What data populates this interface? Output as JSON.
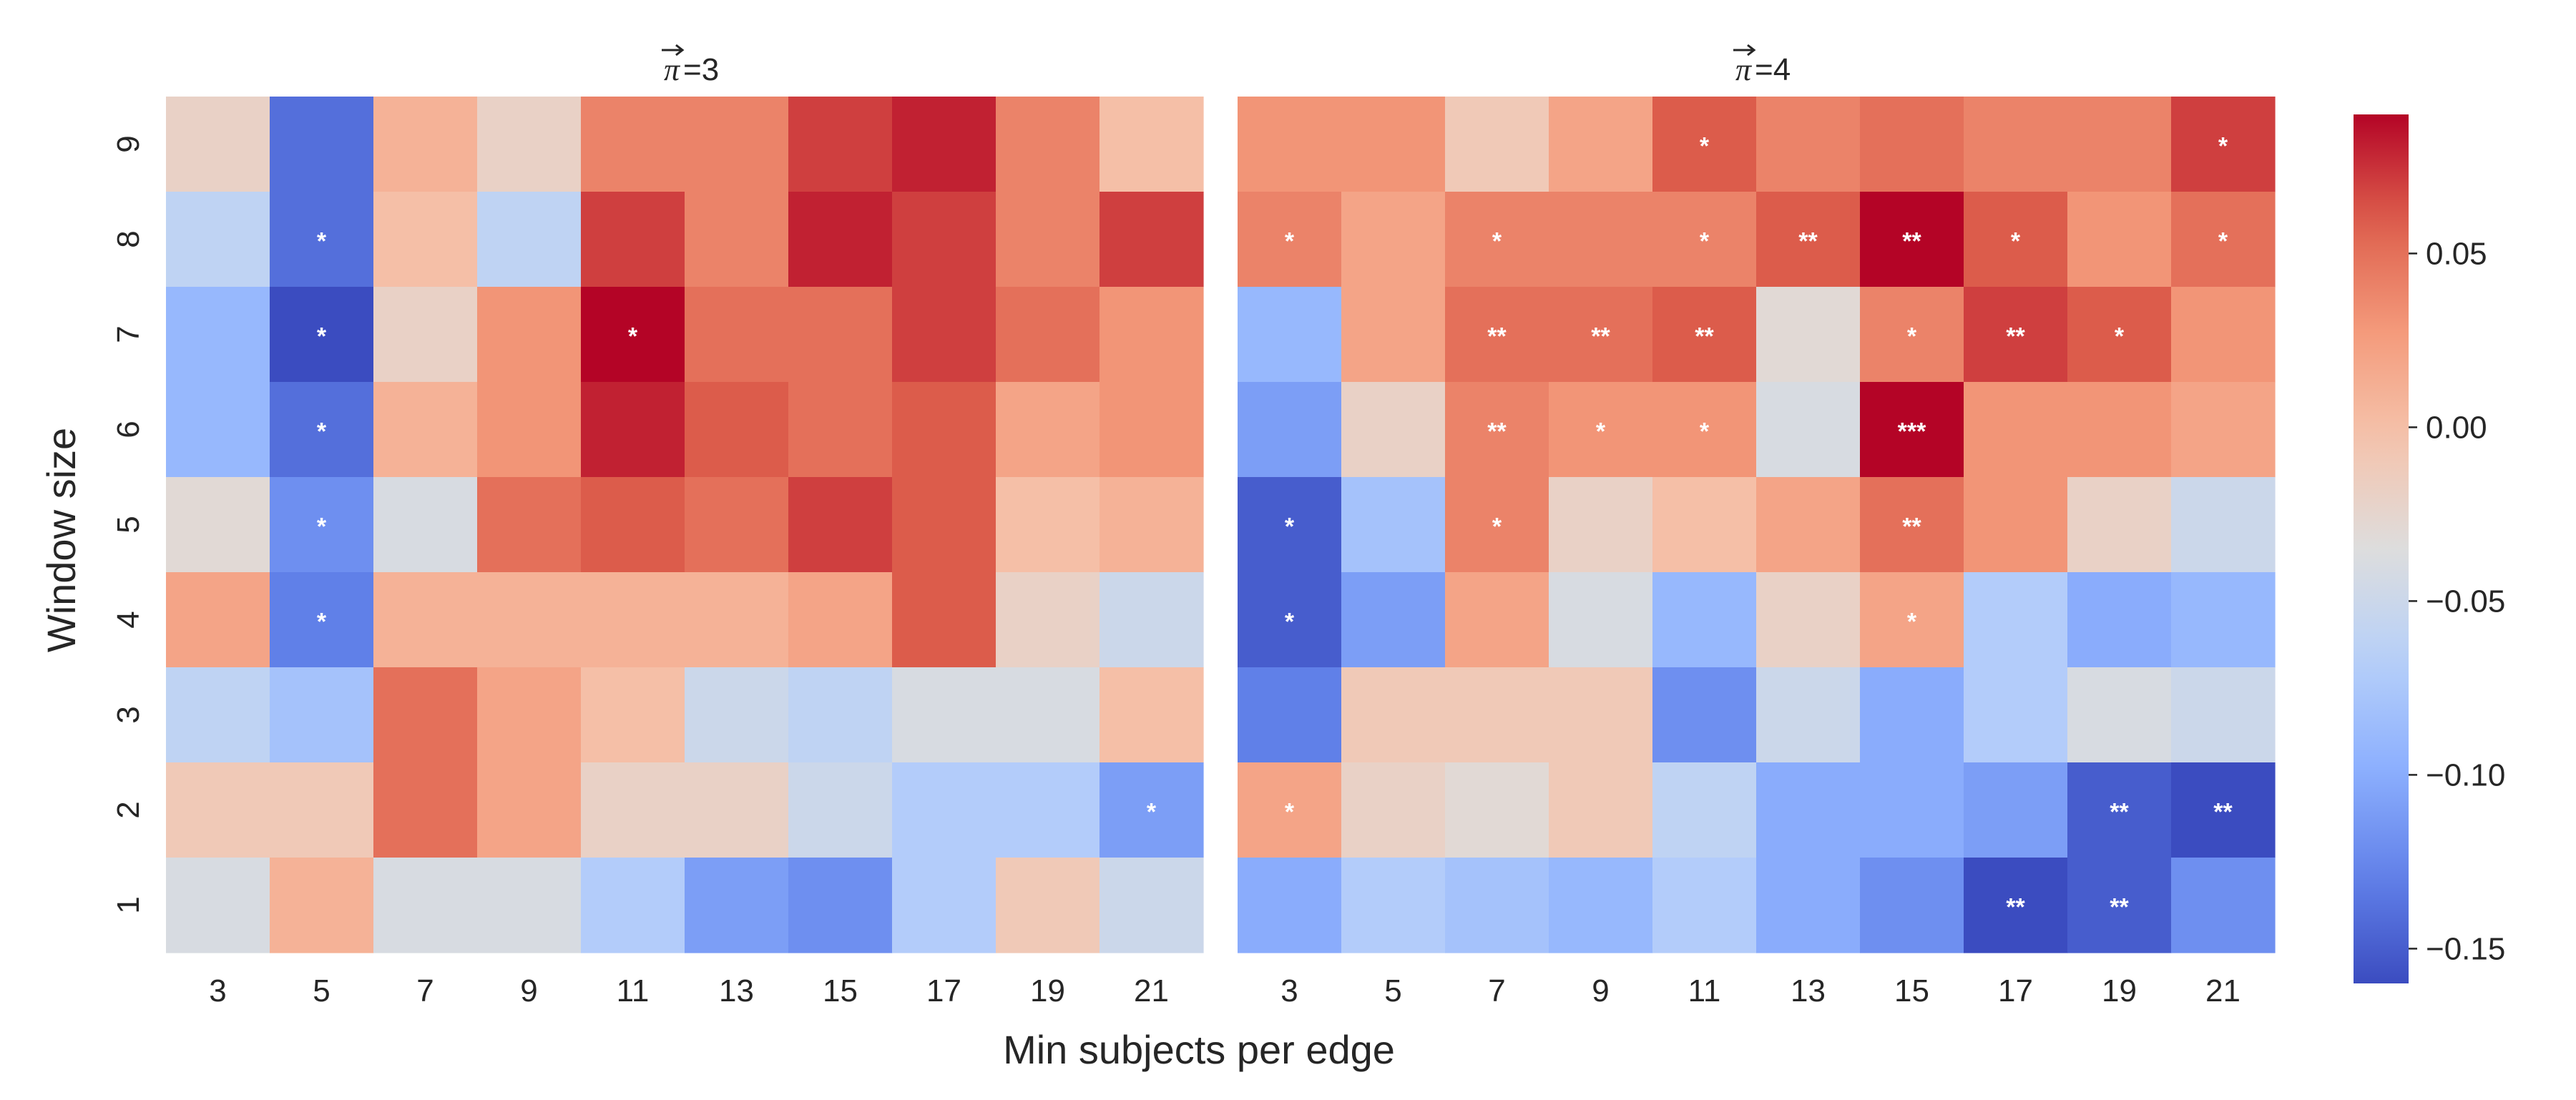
{
  "chart_data": {
    "type": "heatmap",
    "xlabel": "Min subjects per edge",
    "ylabel": "Window size",
    "x_categories": [
      "3",
      "5",
      "7",
      "9",
      "11",
      "13",
      "15",
      "17",
      "19",
      "21"
    ],
    "y_categories": [
      "9",
      "8",
      "7",
      "6",
      "5",
      "4",
      "3",
      "2",
      "1"
    ],
    "colorbar": {
      "colormap": "coolwarm",
      "vmin": -0.16,
      "vmax": 0.09,
      "ticks": [
        0.05,
        0.0,
        -0.05,
        -0.1,
        -0.15
      ],
      "tick_labels": [
        "0.05",
        "0.00",
        "−0.05",
        "−0.10",
        "−0.15"
      ]
    },
    "panels": [
      {
        "title_symbol": "π",
        "title_value": "=3",
        "values": [
          [
            -0.02,
            -0.14,
            0.01,
            -0.02,
            0.04,
            0.04,
            0.07,
            0.08,
            0.04,
            0.0
          ],
          [
            -0.06,
            -0.14,
            0.0,
            -0.06,
            0.07,
            0.04,
            0.08,
            0.07,
            0.04,
            0.07
          ],
          [
            -0.09,
            -0.16,
            -0.02,
            0.03,
            0.09,
            0.05,
            0.05,
            0.07,
            0.05,
            0.03
          ],
          [
            -0.09,
            -0.14,
            0.01,
            0.03,
            0.08,
            0.06,
            0.05,
            0.06,
            0.02,
            0.03
          ],
          [
            -0.03,
            -0.12,
            -0.04,
            0.05,
            0.06,
            0.05,
            0.07,
            0.06,
            0.0,
            0.01
          ],
          [
            0.02,
            -0.13,
            0.01,
            0.01,
            0.01,
            0.01,
            0.02,
            0.06,
            -0.02,
            -0.05
          ],
          [
            -0.06,
            -0.08,
            0.05,
            0.02,
            0.0,
            -0.05,
            -0.06,
            -0.04,
            -0.04,
            0.0
          ],
          [
            -0.01,
            -0.01,
            0.05,
            0.02,
            -0.02,
            -0.02,
            -0.05,
            -0.07,
            -0.07,
            -0.11
          ],
          [
            -0.04,
            0.01,
            -0.04,
            -0.04,
            -0.07,
            -0.11,
            -0.12,
            -0.07,
            -0.01,
            -0.05
          ]
        ],
        "annotations": [
          [
            "",
            "",
            "",
            "",
            "",
            "",
            "",
            "",
            "",
            ""
          ],
          [
            "",
            "*",
            "",
            "",
            "",
            "",
            "",
            "",
            "",
            ""
          ],
          [
            "",
            "*",
            "",
            "",
            "*",
            "",
            "",
            "",
            "",
            ""
          ],
          [
            "",
            "*",
            "",
            "",
            "",
            "",
            "",
            "",
            "",
            ""
          ],
          [
            "",
            "*",
            "",
            "",
            "",
            "",
            "",
            "",
            "",
            ""
          ],
          [
            "",
            "*",
            "",
            "",
            "",
            "",
            "",
            "",
            "",
            ""
          ],
          [
            "",
            "",
            "",
            "",
            "",
            "",
            "",
            "",
            "",
            ""
          ],
          [
            "",
            "",
            "",
            "",
            "",
            "",
            "",
            "",
            "",
            "*"
          ],
          [
            "",
            "",
            "",
            "",
            "",
            "",
            "",
            "",
            "",
            ""
          ]
        ]
      },
      {
        "title_symbol": "π",
        "title_value": "=4",
        "values": [
          [
            0.03,
            0.03,
            -0.01,
            0.02,
            0.06,
            0.04,
            0.05,
            0.04,
            0.04,
            0.07
          ],
          [
            0.04,
            0.02,
            0.04,
            0.04,
            0.04,
            0.06,
            0.09,
            0.06,
            0.03,
            0.05
          ],
          [
            -0.09,
            0.02,
            0.05,
            0.05,
            0.06,
            -0.03,
            0.04,
            0.07,
            0.06,
            0.03
          ],
          [
            -0.11,
            -0.02,
            0.04,
            0.03,
            0.03,
            -0.04,
            0.09,
            0.03,
            0.03,
            0.02
          ],
          [
            -0.15,
            -0.08,
            0.04,
            -0.02,
            0.0,
            0.02,
            0.05,
            0.03,
            -0.02,
            -0.05
          ],
          [
            -0.15,
            -0.11,
            0.02,
            -0.04,
            -0.09,
            -0.02,
            0.02,
            -0.07,
            -0.1,
            -0.09
          ],
          [
            -0.13,
            -0.01,
            -0.01,
            -0.01,
            -0.12,
            -0.05,
            -0.1,
            -0.07,
            -0.04,
            -0.05
          ],
          [
            0.02,
            -0.02,
            -0.03,
            -0.01,
            -0.06,
            -0.1,
            -0.1,
            -0.11,
            -0.15,
            -0.17
          ],
          [
            -0.1,
            -0.07,
            -0.08,
            -0.09,
            -0.07,
            -0.1,
            -0.12,
            -0.17,
            -0.15,
            -0.12
          ]
        ],
        "annotations": [
          [
            "",
            "",
            "",
            "",
            "*",
            "",
            "",
            "",
            "",
            "*"
          ],
          [
            "*",
            "",
            "*",
            "",
            "*",
            "**",
            "**",
            "*",
            "",
            "*"
          ],
          [
            "",
            "",
            "**",
            "**",
            "**",
            "",
            "*",
            "**",
            "*",
            ""
          ],
          [
            "",
            "",
            "**",
            "*",
            "*",
            "",
            "***",
            "",
            "",
            ""
          ],
          [
            "*",
            "",
            "*",
            "",
            "",
            "",
            "**",
            "",
            "",
            ""
          ],
          [
            "*",
            "",
            "",
            "",
            "",
            "",
            "*",
            "",
            "",
            ""
          ],
          [
            "",
            "",
            "",
            "",
            "",
            "",
            "",
            "",
            "",
            ""
          ],
          [
            "*",
            "",
            "",
            "",
            "",
            "",
            "",
            "",
            "**",
            "**"
          ],
          [
            "",
            "",
            "",
            "",
            "",
            "",
            "",
            "**",
            "**",
            ""
          ]
        ]
      }
    ]
  }
}
